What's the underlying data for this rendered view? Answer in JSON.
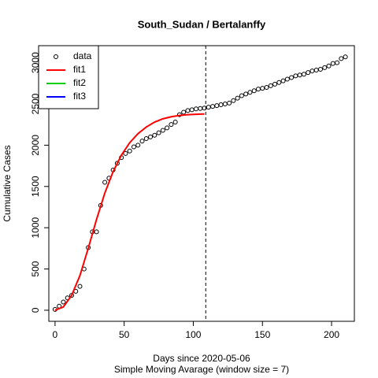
{
  "chart_data": {
    "type": "scatter",
    "title": "South_Sudan / Bertalanffy",
    "xlabel": "Days since 2020-05-06",
    "subtitle": "Simple Moving Avarage (window size = 7)",
    "ylabel": "Cumulative Cases",
    "xlim": [
      -4.5,
      216.5
    ],
    "ylim": [
      -134,
      3206
    ],
    "xticks": [
      0,
      50,
      100,
      150,
      200
    ],
    "yticks": [
      0,
      500,
      1000,
      1500,
      2000,
      2500,
      3000
    ],
    "vline": 109,
    "legend": "top-left",
    "series": [
      {
        "name": "data",
        "color": "#000000",
        "x": [
          0,
          3,
          6,
          9,
          12,
          15,
          18,
          21,
          24,
          27,
          30,
          33,
          36,
          39,
          42,
          45,
          48,
          51,
          54,
          57,
          60,
          63,
          66,
          69,
          72,
          75,
          78,
          81,
          84,
          87,
          90,
          93,
          96,
          99,
          102,
          105,
          108,
          111,
          114,
          117,
          120,
          123,
          126,
          129,
          132,
          135,
          138,
          141,
          144,
          147,
          150,
          153,
          156,
          159,
          162,
          165,
          168,
          171,
          174,
          177,
          180,
          183,
          186,
          189,
          192,
          195,
          198,
          201,
          204,
          207,
          210
        ],
        "values": [
          10,
          50,
          100,
          150,
          180,
          230,
          290,
          500,
          760,
          950,
          950,
          1270,
          1550,
          1600,
          1700,
          1780,
          1850,
          1900,
          1930,
          1980,
          2000,
          2050,
          2080,
          2100,
          2120,
          2150,
          2180,
          2210,
          2250,
          2280,
          2370,
          2400,
          2420,
          2430,
          2440,
          2445,
          2450,
          2460,
          2470,
          2480,
          2490,
          2500,
          2510,
          2540,
          2570,
          2600,
          2620,
          2640,
          2660,
          2680,
          2690,
          2700,
          2720,
          2740,
          2760,
          2780,
          2800,
          2820,
          2840,
          2850,
          2860,
          2880,
          2900,
          2910,
          2920,
          2940,
          2960,
          2990,
          3000,
          3050,
          3070
        ]
      },
      {
        "name": "fit1",
        "color": "#ff0000",
        "x": [
          0,
          6,
          12,
          18,
          24,
          30,
          36,
          42,
          48,
          54,
          60,
          66,
          72,
          78,
          84,
          90,
          96,
          102,
          108
        ],
        "values": [
          0,
          40,
          180,
          420,
          750,
          1100,
          1420,
          1680,
          1880,
          2030,
          2140,
          2220,
          2280,
          2320,
          2345,
          2360,
          2370,
          2375,
          2378
        ]
      },
      {
        "name": "fit2",
        "color": "#00cd00",
        "x": [],
        "values": []
      },
      {
        "name": "fit3",
        "color": "#0000ff",
        "x": [],
        "values": []
      }
    ]
  }
}
